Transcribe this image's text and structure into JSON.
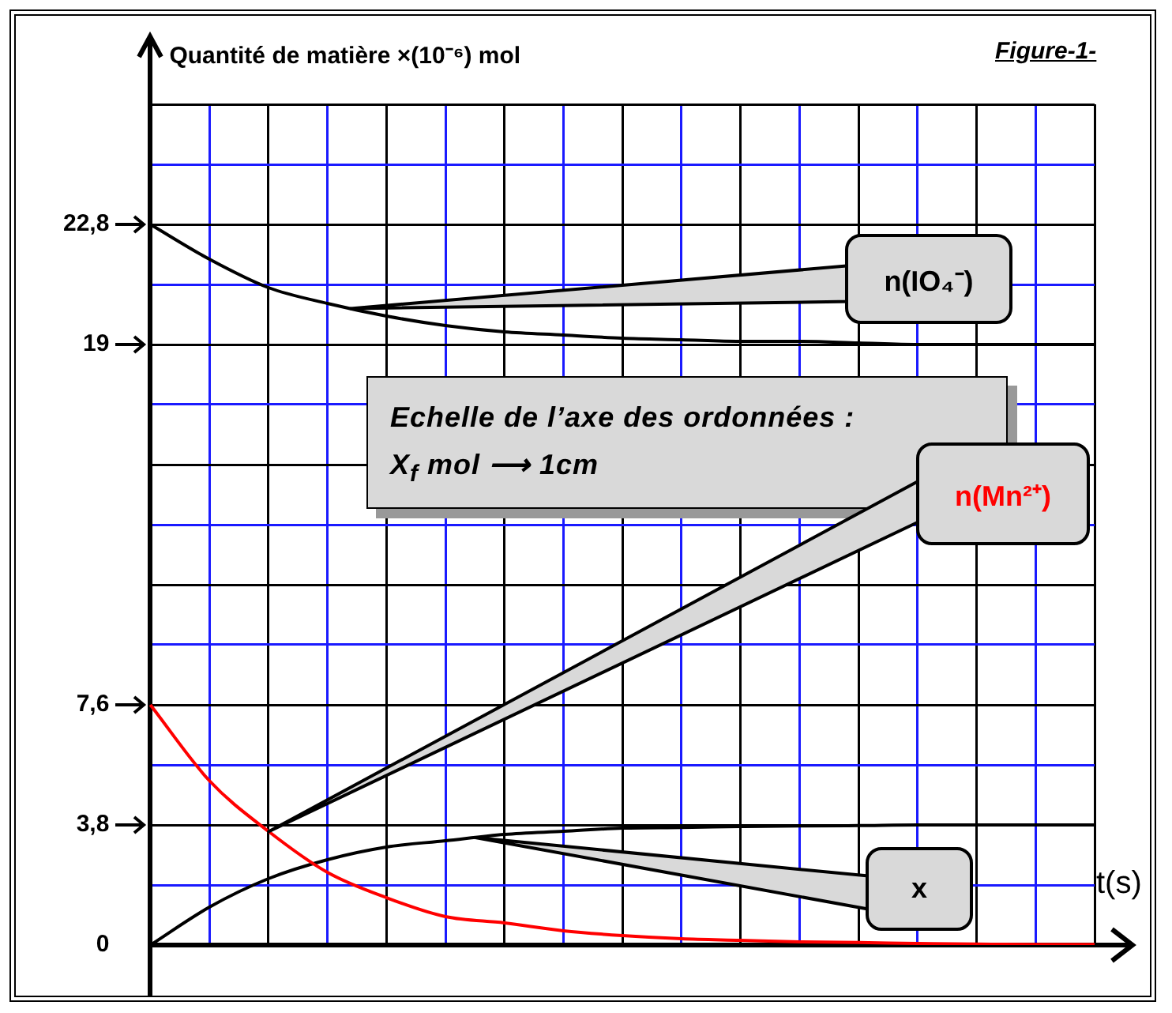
{
  "chart_data": {
    "type": "line",
    "ylabel": "Quantité de matière ×(10⁻⁶) mol",
    "xlabel": "t(s)",
    "annotations": [
      "Figure-1-",
      "Echelle de l’axe des ordonnées :\nX$_{f}$ mol ⟶ 1cm"
    ],
    "categories": [
      null,
      null,
      null,
      null,
      null,
      null,
      null,
      null,
      null,
      null,
      null,
      null,
      null,
      null,
      null,
      null,
      null
    ],
    "series": [
      {
        "name": "n(IO₄⁻)",
        "color": "#000000",
        "values": [
          22.8,
          21.7,
          20.8,
          20.3,
          19.9,
          19.6,
          19.4,
          19.3,
          19.2,
          19.15,
          19.1,
          19.1,
          19.05,
          19,
          19,
          19,
          19
        ]
      },
      {
        "name": "n(Mn²⁺)",
        "color": "#ff0000",
        "values": [
          7.6,
          5.2,
          3.6,
          2.3,
          1.5,
          0.9,
          0.7,
          0.45,
          0.3,
          0.2,
          0.15,
          0.1,
          0.08,
          0.05,
          0.03,
          0.02,
          0.02
        ]
      },
      {
        "name": "x",
        "color": "#000000",
        "values": [
          0,
          1.2,
          2.1,
          2.7,
          3.1,
          3.3,
          3.5,
          3.6,
          3.7,
          3.72,
          3.75,
          3.77,
          3.78,
          3.8,
          3.8,
          3.8,
          3.8
        ]
      }
    ],
    "ylim": [
      0,
      26.6
    ],
    "yticks": [
      0,
      {
        "value": 1.9,
        "label": null
      },
      {
        "value": 3.8,
        "label": "3,8"
      },
      {
        "value": 5.7,
        "label": null
      },
      {
        "value": 7.6,
        "label": "7,6"
      },
      {
        "value": 9.5,
        "label": null
      },
      {
        "value": 11.4,
        "label": null
      },
      {
        "value": 13.3,
        "label": null
      },
      {
        "value": 15.2,
        "label": null
      },
      {
        "value": 17.1,
        "label": null
      },
      19,
      {
        "value": 20.9,
        "label": null
      },
      {
        "value": 22.8,
        "label": "22,8"
      },
      {
        "value": 24.7,
        "label": null
      },
      {
        "value": 26.6,
        "label": null
      }
    ],
    "grid": true,
    "tick_labels": "y",
    "legend": false,
    "marker": "none",
    "line_style": "solid"
  }
}
